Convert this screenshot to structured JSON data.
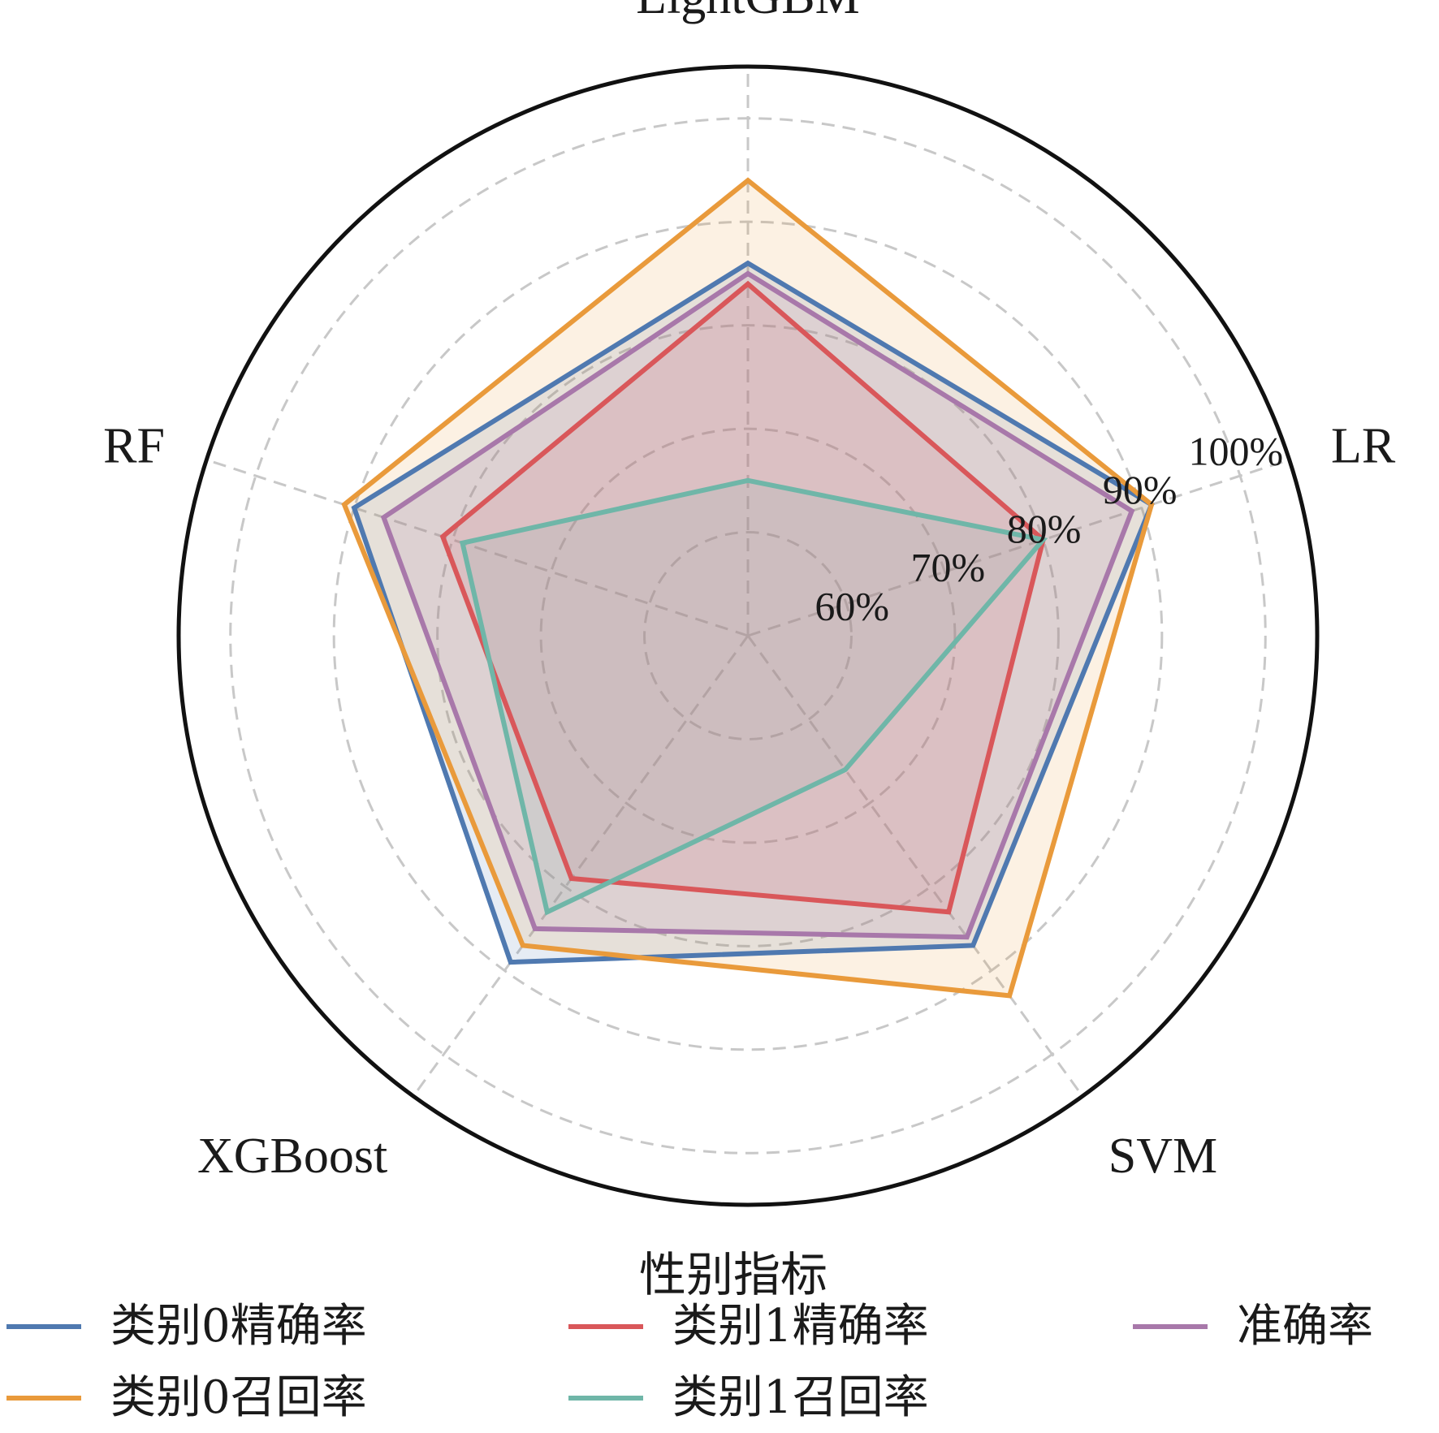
{
  "chart_data": {
    "type": "radar",
    "axes": [
      "LightGBM",
      "LR",
      "SVM",
      "XGBoost",
      "RF"
    ],
    "rlim": [
      50,
      105
    ],
    "rticks": [
      60,
      70,
      80,
      90,
      100
    ],
    "rtick_labels": [
      "60%",
      "70%",
      "80%",
      "90%",
      "100%"
    ],
    "grid": true,
    "legend": {
      "title": "性别指标",
      "placement": "bottom"
    },
    "series": [
      {
        "name": "类别0精确率",
        "color": "#4f79b0",
        "values": [
          86,
          91,
          87,
          89,
          90
        ]
      },
      {
        "name": "类别0召回率",
        "color": "#e99a3b",
        "values": [
          94,
          91,
          93,
          87,
          91
        ]
      },
      {
        "name": "类别1精确率",
        "color": "#d9575a",
        "values": [
          84,
          80,
          83,
          79,
          81
        ]
      },
      {
        "name": "类别1召回率",
        "color": "#6fb6a8",
        "values": [
          65,
          80,
          66,
          83,
          79
        ]
      },
      {
        "name": "准确率",
        "color": "#a878aa",
        "values": [
          85,
          89,
          86,
          85,
          87
        ]
      }
    ]
  }
}
